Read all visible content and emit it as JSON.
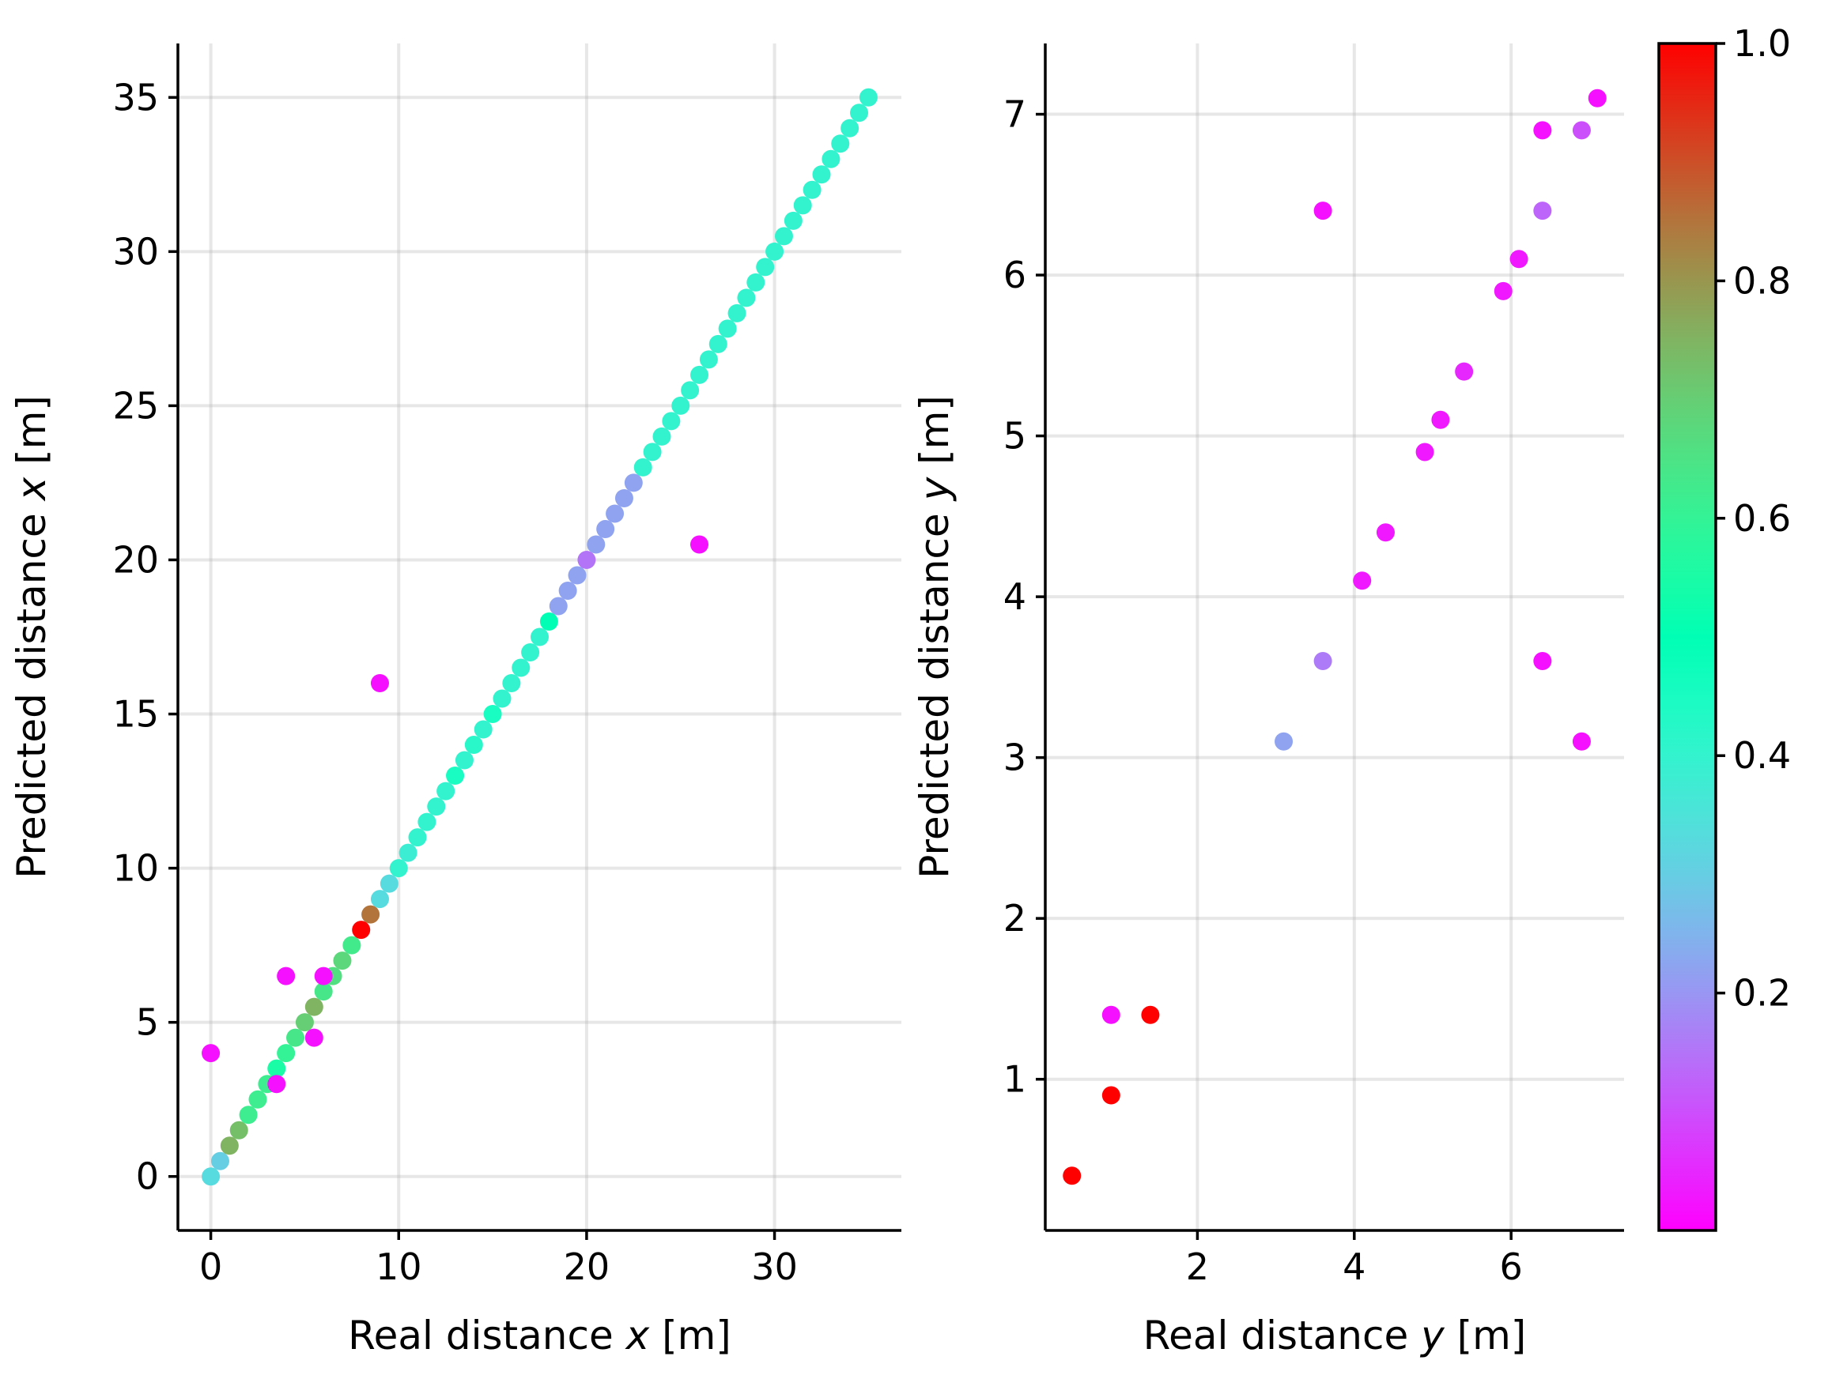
{
  "chart_data": [
    {
      "type": "scatter",
      "title": "",
      "xlabel": "Real distance x [m]",
      "xlabel_prefix": "Real distance ",
      "xlabel_var": "x",
      "xlabel_suffix": " [m]",
      "ylabel": "Predicted distance x [m]",
      "ylabel_prefix": "Predicted distance ",
      "ylabel_var": "x",
      "ylabel_suffix": " [m]",
      "xlim": [
        -1.75,
        36.75
      ],
      "ylim": [
        -1.75,
        36.75
      ],
      "xticks": [
        0,
        10,
        20,
        30
      ],
      "yticks": [
        0,
        5,
        10,
        15,
        20,
        25,
        30,
        35
      ],
      "grid": true,
      "points": [
        {
          "x": 0,
          "y": 0,
          "c": 0.33
        },
        {
          "x": 0.5,
          "y": 0.5,
          "c": 0.3
        },
        {
          "x": 1,
          "y": 1,
          "c": 0.75
        },
        {
          "x": 1.5,
          "y": 1.5,
          "c": 0.73
        },
        {
          "x": 2,
          "y": 2,
          "c": 0.62
        },
        {
          "x": 2.5,
          "y": 2.5,
          "c": 0.62
        },
        {
          "x": 3,
          "y": 3,
          "c": 0.62
        },
        {
          "x": 3.5,
          "y": 3.5,
          "c": 0.55
        },
        {
          "x": 4,
          "y": 4,
          "c": 0.6
        },
        {
          "x": 4.5,
          "y": 4.5,
          "c": 0.64
        },
        {
          "x": 5,
          "y": 5,
          "c": 0.7
        },
        {
          "x": 5.5,
          "y": 5.5,
          "c": 0.75
        },
        {
          "x": 6,
          "y": 6,
          "c": 0.64
        },
        {
          "x": 6.5,
          "y": 6.5,
          "c": 0.66
        },
        {
          "x": 7,
          "y": 7,
          "c": 0.68
        },
        {
          "x": 7.5,
          "y": 7.5,
          "c": 0.63
        },
        {
          "x": 8,
          "y": 8,
          "c": 1.0
        },
        {
          "x": 8.5,
          "y": 8.5,
          "c": 0.85
        },
        {
          "x": 9,
          "y": 9,
          "c": 0.33
        },
        {
          "x": 9.5,
          "y": 9.5,
          "c": 0.33
        },
        {
          "x": 10,
          "y": 10,
          "c": 0.4
        },
        {
          "x": 10.5,
          "y": 10.5,
          "c": 0.38
        },
        {
          "x": 11,
          "y": 11,
          "c": 0.4
        },
        {
          "x": 11.5,
          "y": 11.5,
          "c": 0.4
        },
        {
          "x": 12,
          "y": 12,
          "c": 0.4
        },
        {
          "x": 12.5,
          "y": 12.5,
          "c": 0.4
        },
        {
          "x": 13,
          "y": 13,
          "c": 0.45
        },
        {
          "x": 13.5,
          "y": 13.5,
          "c": 0.4
        },
        {
          "x": 14,
          "y": 14,
          "c": 0.42
        },
        {
          "x": 14.5,
          "y": 14.5,
          "c": 0.4
        },
        {
          "x": 15,
          "y": 15,
          "c": 0.45
        },
        {
          "x": 15.5,
          "y": 15.5,
          "c": 0.4
        },
        {
          "x": 16,
          "y": 16,
          "c": 0.4
        },
        {
          "x": 16.5,
          "y": 16.5,
          "c": 0.4
        },
        {
          "x": 17,
          "y": 17,
          "c": 0.4
        },
        {
          "x": 17.5,
          "y": 17.5,
          "c": 0.4
        },
        {
          "x": 18,
          "y": 18,
          "c": 0.5
        },
        {
          "x": 18.5,
          "y": 18.5,
          "c": 0.22
        },
        {
          "x": 19,
          "y": 19,
          "c": 0.22
        },
        {
          "x": 19.5,
          "y": 19.5,
          "c": 0.22
        },
        {
          "x": 20,
          "y": 20,
          "c": 0.15
        },
        {
          "x": 20.5,
          "y": 20.5,
          "c": 0.22
        },
        {
          "x": 21,
          "y": 21,
          "c": 0.22
        },
        {
          "x": 21.5,
          "y": 21.5,
          "c": 0.22
        },
        {
          "x": 22,
          "y": 22,
          "c": 0.22
        },
        {
          "x": 22.5,
          "y": 22.5,
          "c": 0.22
        },
        {
          "x": 23,
          "y": 23,
          "c": 0.4
        },
        {
          "x": 23.5,
          "y": 23.5,
          "c": 0.4
        },
        {
          "x": 24,
          "y": 24,
          "c": 0.4
        },
        {
          "x": 24.5,
          "y": 24.5,
          "c": 0.4
        },
        {
          "x": 25,
          "y": 25,
          "c": 0.4
        },
        {
          "x": 25.5,
          "y": 25.5,
          "c": 0.4
        },
        {
          "x": 26,
          "y": 26,
          "c": 0.4
        },
        {
          "x": 26.5,
          "y": 26.5,
          "c": 0.4
        },
        {
          "x": 27,
          "y": 27,
          "c": 0.4
        },
        {
          "x": 27.5,
          "y": 27.5,
          "c": 0.4
        },
        {
          "x": 28,
          "y": 28,
          "c": 0.4
        },
        {
          "x": 28.5,
          "y": 28.5,
          "c": 0.4
        },
        {
          "x": 29,
          "y": 29,
          "c": 0.4
        },
        {
          "x": 29.5,
          "y": 29.5,
          "c": 0.4
        },
        {
          "x": 30,
          "y": 30,
          "c": 0.4
        },
        {
          "x": 30.5,
          "y": 30.5,
          "c": 0.4
        },
        {
          "x": 31,
          "y": 31,
          "c": 0.4
        },
        {
          "x": 31.5,
          "y": 31.5,
          "c": 0.4
        },
        {
          "x": 32,
          "y": 32,
          "c": 0.4
        },
        {
          "x": 32.5,
          "y": 32.5,
          "c": 0.4
        },
        {
          "x": 33,
          "y": 33,
          "c": 0.4
        },
        {
          "x": 33.5,
          "y": 33.5,
          "c": 0.4
        },
        {
          "x": 34,
          "y": 34,
          "c": 0.4
        },
        {
          "x": 34.5,
          "y": 34.5,
          "c": 0.4
        },
        {
          "x": 35,
          "y": 35,
          "c": 0.4
        },
        {
          "x": 0,
          "y": 4,
          "c": 0.02
        },
        {
          "x": 3.5,
          "y": 3,
          "c": 0.02
        },
        {
          "x": 4,
          "y": 6.5,
          "c": 0.02
        },
        {
          "x": 5.5,
          "y": 4.5,
          "c": 0.02
        },
        {
          "x": 6,
          "y": 6.5,
          "c": 0.02
        },
        {
          "x": 9,
          "y": 16,
          "c": 0.02
        },
        {
          "x": 26,
          "y": 20.5,
          "c": 0.02
        }
      ]
    },
    {
      "type": "scatter",
      "title": "",
      "xlabel": "Real distance y [m]",
      "xlabel_prefix": "Real distance ",
      "xlabel_var": "y",
      "xlabel_suffix": " [m]",
      "ylabel": "Predicted distance y [m]",
      "ylabel_prefix": "Predicted distance ",
      "ylabel_var": "y",
      "ylabel_suffix": " [m]",
      "xlim": [
        0.06,
        7.44
      ],
      "ylim": [
        0.06,
        7.44
      ],
      "xticks": [
        2,
        4,
        6
      ],
      "yticks": [
        1,
        2,
        3,
        4,
        5,
        6,
        7
      ],
      "grid": true,
      "points": [
        {
          "x": 0.4,
          "y": 0.4,
          "c": 1.0
        },
        {
          "x": 0.9,
          "y": 0.9,
          "c": 1.0
        },
        {
          "x": 0.9,
          "y": 1.4,
          "c": 0.02
        },
        {
          "x": 1.4,
          "y": 1.4,
          "c": 1.0
        },
        {
          "x": 3.1,
          "y": 3.1,
          "c": 0.22
        },
        {
          "x": 3.6,
          "y": 3.6,
          "c": 0.16
        },
        {
          "x": 3.6,
          "y": 6.4,
          "c": 0.02
        },
        {
          "x": 4.1,
          "y": 4.1,
          "c": 0.03
        },
        {
          "x": 4.4,
          "y": 4.4,
          "c": 0.03
        },
        {
          "x": 4.9,
          "y": 4.9,
          "c": 0.03
        },
        {
          "x": 5.1,
          "y": 5.1,
          "c": 0.03
        },
        {
          "x": 5.4,
          "y": 5.4,
          "c": 0.05
        },
        {
          "x": 5.9,
          "y": 5.9,
          "c": 0.03
        },
        {
          "x": 6.1,
          "y": 6.1,
          "c": 0.03
        },
        {
          "x": 6.4,
          "y": 6.4,
          "c": 0.13
        },
        {
          "x": 6.4,
          "y": 6.9,
          "c": 0.02
        },
        {
          "x": 6.4,
          "y": 3.6,
          "c": 0.02
        },
        {
          "x": 6.9,
          "y": 6.9,
          "c": 0.1
        },
        {
          "x": 6.9,
          "y": 3.1,
          "c": 0.02
        },
        {
          "x": 7.1,
          "y": 7.1,
          "c": 0.02
        }
      ]
    }
  ],
  "colorbar": {
    "colormap": "rainbow",
    "range": [
      0.0,
      1.0
    ],
    "ticks": [
      {
        "value": 0.2,
        "label": "0.2"
      },
      {
        "value": 0.4,
        "label": "0.4"
      },
      {
        "value": 0.6,
        "label": "0.6"
      },
      {
        "value": 0.8,
        "label": "0.8"
      },
      {
        "value": 1.0,
        "label": "1.0"
      }
    ]
  },
  "colors": {
    "grid": "#b0b0b0",
    "axis": "#000000",
    "background": "#ffffff"
  }
}
